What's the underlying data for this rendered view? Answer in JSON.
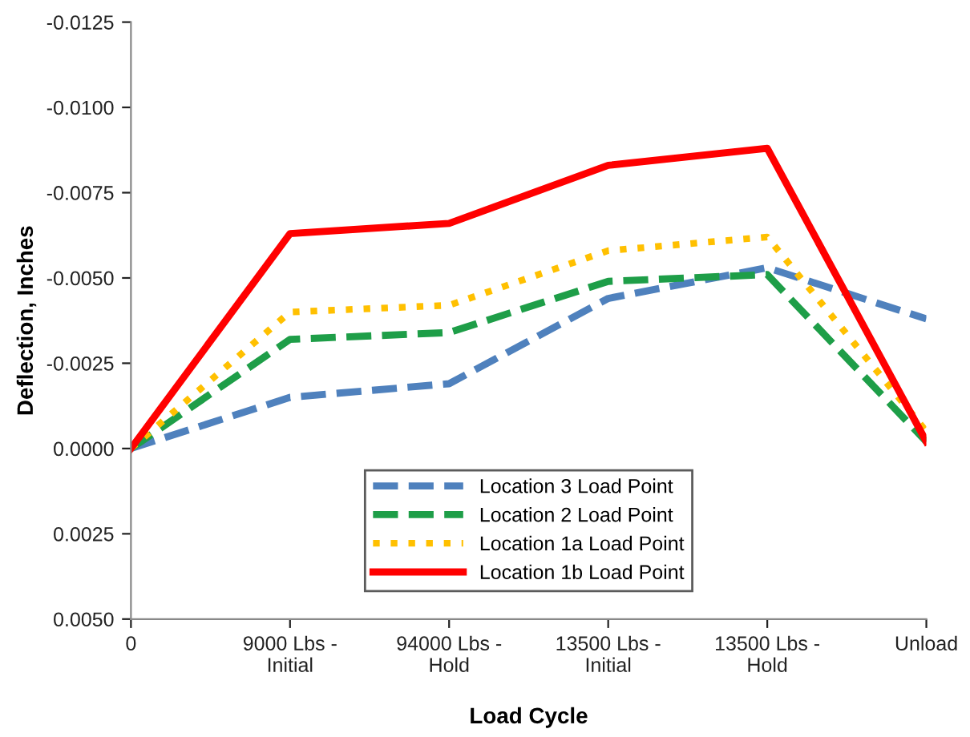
{
  "chart_data": {
    "type": "line",
    "xlabel": "Load Cycle",
    "ylabel": "Deflection, Inches",
    "categories": [
      "0",
      "9000 Lbs -\nInitial",
      "94000 Lbs -\nHold",
      "13500 Lbs -\nInitial",
      "13500 Lbs -\nHold",
      "Unload"
    ],
    "series": [
      {
        "name": "Location 3 Load Point",
        "color": "#4f81bd",
        "line_style": "dashed",
        "values": [
          0.0,
          -0.0015,
          -0.0019,
          -0.0044,
          -0.0053,
          -0.0038
        ]
      },
      {
        "name": "Location 2 Load Point",
        "color": "#1e9e48",
        "line_style": "dashed",
        "values": [
          0.0,
          -0.0032,
          -0.0034,
          -0.0049,
          -0.0051,
          -0.0002
        ]
      },
      {
        "name": "Location 1a Load Point",
        "color": "#ffc000",
        "line_style": "dotted",
        "values": [
          0.0,
          -0.004,
          -0.0042,
          -0.0058,
          -0.0062,
          -0.0005
        ]
      },
      {
        "name": "Location 1b Load Point",
        "color": "#ff0000",
        "line_style": "solid",
        "values": [
          0.0,
          -0.0063,
          -0.0066,
          -0.0083,
          -0.0088,
          -0.0002
        ]
      }
    ],
    "ylim": [
      0.005,
      -0.0125
    ],
    "yticks": [
      {
        "value": -0.0125,
        "label": "-0.0125"
      },
      {
        "value": -0.01,
        "label": "-0.0100"
      },
      {
        "value": -0.0075,
        "label": "-0.0075"
      },
      {
        "value": -0.005,
        "label": "-0.0050"
      },
      {
        "value": -0.0025,
        "label": "-0.0025"
      },
      {
        "value": 0.0,
        "label": "0.0000"
      },
      {
        "value": 0.0025,
        "label": "0.0025"
      },
      {
        "value": 0.005,
        "label": "0.0050"
      }
    ],
    "grid": false,
    "legend": "bottom",
    "marker": "none"
  }
}
